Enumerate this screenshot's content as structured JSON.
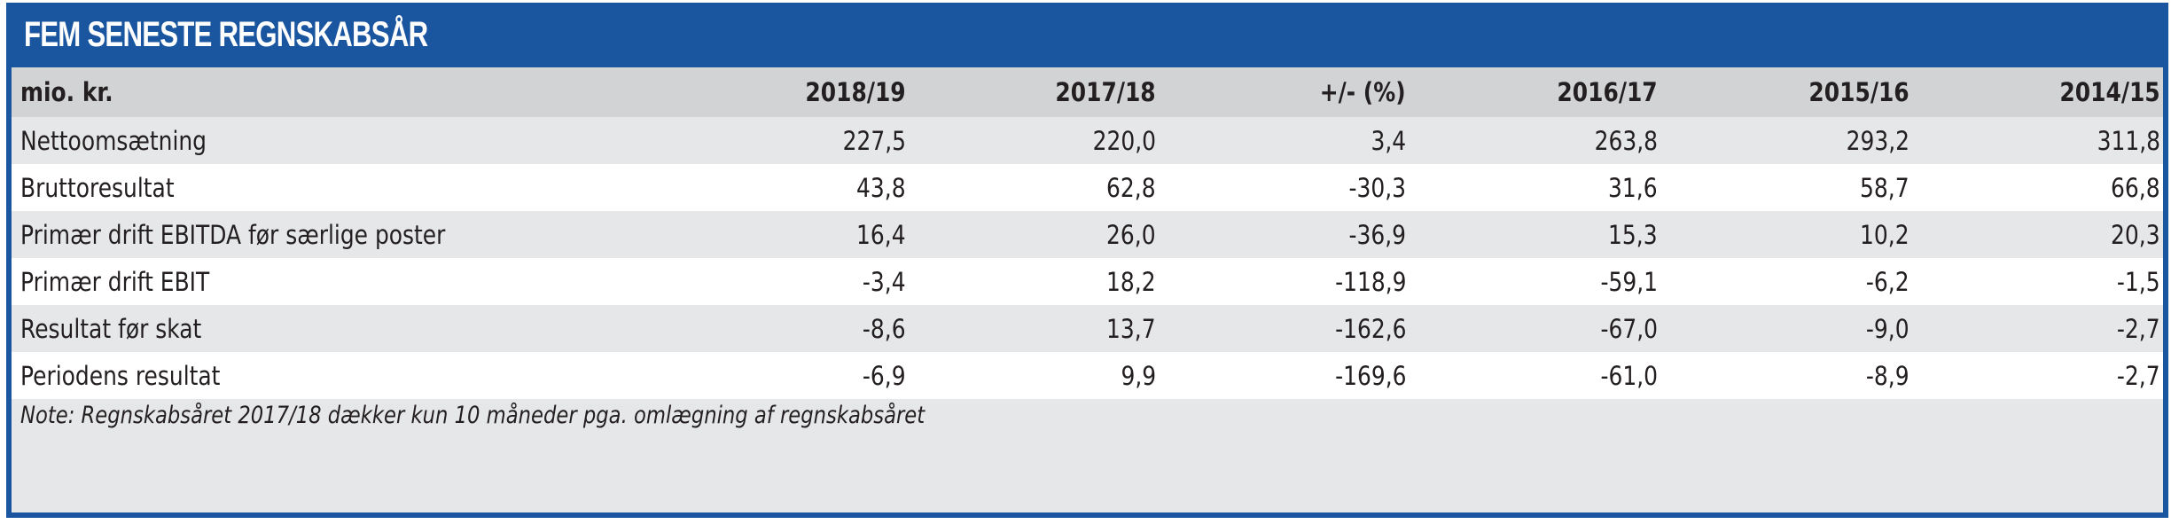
{
  "title": "FEM SENESTE REGNSKABSÅR",
  "colors": {
    "brand_blue": "#1a56a0",
    "header_grey": "#d2d3d5",
    "row_shade": "#e6e7e8",
    "row_white": "#ffffff"
  },
  "table": {
    "columns": [
      "mio. kr.",
      "2018/19",
      "2017/18",
      "+/- (%)",
      "2016/17",
      "2015/16",
      "2014/15"
    ],
    "rows": [
      {
        "label": "Nettoomsætning",
        "values": [
          "227,5",
          "220,0",
          "3,4",
          "263,8",
          "293,2",
          "311,8"
        ]
      },
      {
        "label": "Bruttoresultat",
        "values": [
          "43,8",
          "62,8",
          "-30,3",
          "31,6",
          "58,7",
          "66,8"
        ]
      },
      {
        "label": "Primær drift EBITDA før særlige poster",
        "values": [
          "16,4",
          "26,0",
          "-36,9",
          "15,3",
          "10,2",
          "20,3"
        ]
      },
      {
        "label": "Primær drift EBIT",
        "values": [
          "-3,4",
          "18,2",
          "-118,9",
          "-59,1",
          "-6,2",
          "-1,5"
        ]
      },
      {
        "label": "Resultat før skat",
        "values": [
          "-8,6",
          "13,7",
          "-162,6",
          "-67,0",
          "-9,0",
          "-2,7"
        ]
      },
      {
        "label": "Periodens resultat",
        "values": [
          "-6,9",
          "9,9",
          "-169,6",
          "-61,0",
          "-8,9",
          "-2,7"
        ]
      }
    ]
  },
  "note": "Note: Regnskabsåret 2017/18 dækker kun 10 måneder pga. omlægning af regnskabsåret"
}
